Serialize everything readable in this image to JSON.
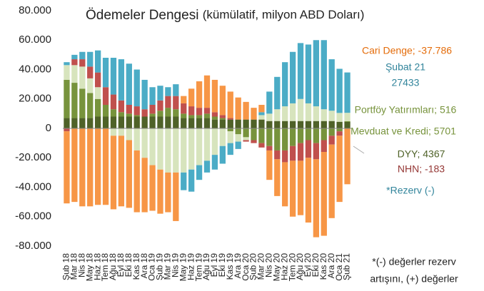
{
  "chart_data": {
    "type": "stacked_bar",
    "title": "Ödemeler Dengesi",
    "subtitle": "(kümülatif, milyon ABD Doları)",
    "categories": [
      "Şub 18",
      "Mar 18",
      "Nis 18",
      "May 18",
      "Haz 18",
      "Tem 18",
      "Ağu 18",
      "Eyl 18",
      "Eki 18",
      "Kas 18",
      "Ara 18",
      "Oca 19",
      "Şub 19",
      "Mar 19",
      "Nis 19",
      "May 19",
      "Haz 19",
      "Tem 19",
      "Ağu 19",
      "Eyl 19",
      "Eki 19",
      "Kas 19",
      "Ara 19",
      "Oca 20",
      "Şub 20",
      "Mar 20",
      "Nis 20",
      "May 20",
      "Haz 20",
      "Tem 20",
      "Ağu 20",
      "Eyl 20",
      "Eki 20",
      "Kas 20",
      "Ara 20",
      "Oca 21",
      "Şub 21"
    ],
    "series": [
      {
        "name": "DYY; 4367",
        "color": "#4f6228",
        "label_color": "#4f6228",
        "values": [
          7000,
          7000,
          7000,
          7000,
          8000,
          8000,
          8000,
          8000,
          8000,
          8000,
          8000,
          8000,
          8000,
          8000,
          8000,
          7000,
          7000,
          7000,
          7000,
          6000,
          6000,
          6000,
          6000,
          6000,
          6000,
          6000,
          5000,
          5000,
          5000,
          5000,
          5000,
          5000,
          5000,
          5000,
          5000,
          4500,
          4367
        ]
      },
      {
        "name": "Portföy Yatırımları; 516",
        "color": "#77933c",
        "label_color": "#77933c",
        "values": [
          26000,
          24000,
          20000,
          17000,
          12000,
          8000,
          5000,
          3000,
          2000,
          1000,
          0,
          2000,
          4000,
          6000,
          5000,
          3000,
          2000,
          2000,
          3000,
          2000,
          1000,
          -2000,
          -4000,
          -6000,
          -8000,
          -10000,
          -12000,
          -15000,
          -15000,
          -12000,
          -10000,
          -8000,
          -10000,
          -8000,
          -5000,
          -2000,
          516
        ]
      },
      {
        "name": "Mevduat ve Kredi; 5701",
        "color": "#d7e4bd",
        "label_color": "#77933c",
        "values": [
          10000,
          12000,
          15000,
          10000,
          8000,
          0,
          -5000,
          -5000,
          -8000,
          -15000,
          -20000,
          -25000,
          -28000,
          -30000,
          -30000,
          -30000,
          -28000,
          -25000,
          -22000,
          -18000,
          -12000,
          -8000,
          -5000,
          -2000,
          0,
          3000,
          5000,
          8000,
          10000,
          12000,
          15000,
          12000,
          10000,
          8000,
          7000,
          6000,
          5701
        ]
      },
      {
        "name": "NHN; -183",
        "color": "#c0504d",
        "label_color": "#953735",
        "values": [
          -2000,
          4000,
          5000,
          8000,
          10000,
          12000,
          10000,
          8000,
          6000,
          6000,
          5000,
          6000,
          7000,
          8000,
          9000,
          7000,
          6000,
          5000,
          4000,
          3000,
          2000,
          1000,
          0,
          -1000,
          -2000,
          -3000,
          -3000,
          -6000,
          -8000,
          -10000,
          -12000,
          -12000,
          -11000,
          -8000,
          -6000,
          -3000,
          -183
        ]
      },
      {
        "name": "*Rezerv (-)",
        "color": "#4bacc6",
        "label_color": "#31849b",
        "values": [
          2000,
          3000,
          5000,
          10000,
          15000,
          20000,
          25000,
          28000,
          28000,
          25000,
          20000,
          12000,
          10000,
          6000,
          8000,
          -12000,
          -15000,
          -10000,
          -8000,
          -10000,
          -12000,
          -8000,
          -5000,
          0,
          0,
          2000,
          15000,
          22000,
          30000,
          35000,
          38000,
          40000,
          45000,
          47000,
          35000,
          30000,
          27433
        ]
      },
      {
        "name": "Cari Denge; -37.786",
        "color": "#f79646",
        "label_color": "#e46c0a",
        "values": [
          -49000,
          -50000,
          -53000,
          -53000,
          -52000,
          -52000,
          -50000,
          -48000,
          -46000,
          -42000,
          -37000,
          -31000,
          -30000,
          -27000,
          -33000,
          5000,
          12000,
          18000,
          22000,
          22000,
          20000,
          18000,
          15000,
          12000,
          8000,
          5000,
          -20000,
          -25000,
          -30000,
          -38000,
          -37000,
          -44000,
          -53000,
          -57000,
          -50000,
          -45000,
          -37786
        ]
      }
    ],
    "rezerv_notes": [
      "Şubat 21",
      "27433"
    ],
    "footnote": [
      "*(-) değerler rezerv",
      "artışını, (+) değerler"
    ],
    "ylim": [
      -80000,
      80000
    ],
    "yticks": [
      {
        "value": -80000,
        "label": "-80.000"
      },
      {
        "value": -60000,
        "label": "-60.000"
      },
      {
        "value": -40000,
        "label": "-40.000"
      },
      {
        "value": -20000,
        "label": "-20.000"
      },
      0,
      {
        "value": 20000,
        "label": "20.000"
      },
      {
        "value": 40000,
        "label": "40.000"
      },
      {
        "value": 60000,
        "label": "60.000"
      },
      {
        "value": 80000,
        "label": "80.000"
      }
    ]
  }
}
